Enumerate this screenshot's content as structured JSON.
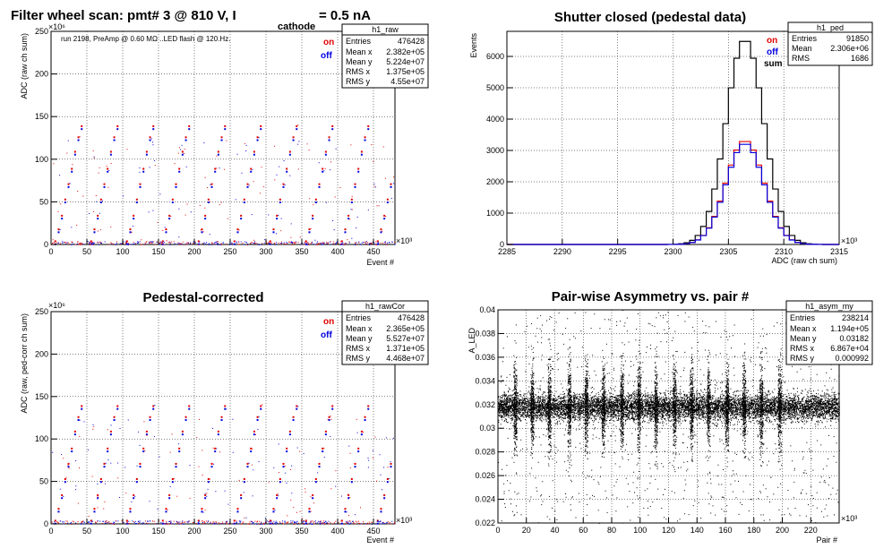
{
  "header": {
    "title_prefix": "Filter wheel scan: pmt#   3 @   810 V, I",
    "title_subscript": "cathode",
    "title_suffix": " = 0.5 nA"
  },
  "colors": {
    "on": "#e00000",
    "off": "#0000e0",
    "sum": "#000000",
    "grid": "#000000"
  },
  "legend_labels": {
    "on": "on",
    "off": "off",
    "sum": "sum"
  },
  "panels": [
    {
      "id": "raw",
      "note": "run 2198, PreAmp @ 0.60 MΩ ..LED flash @  120.Hz.",
      "ylabel": "ADC (raw ch sum)",
      "xlabel": "Event #",
      "xexp": "×10³",
      "yexp": "×10⁶",
      "stats": {
        "name": "h1_raw",
        "rows": [
          [
            "Entries",
            "476428"
          ],
          [
            "Mean x",
            "2.382e+05"
          ],
          [
            "Mean y",
            "5.224e+07"
          ],
          [
            "RMS x",
            "1.375e+05"
          ],
          [
            "RMS y",
            "4.55e+07"
          ]
        ]
      }
    },
    {
      "id": "ped",
      "title": "Shutter closed (pedestal data)",
      "ylabel": "Events",
      "xlabel": "ADC (raw ch sum)",
      "xexp": "×10³",
      "stats": {
        "name": "h1_ped",
        "rows": [
          [
            "Entries",
            "91850"
          ],
          [
            "Mean",
            "2.306e+06"
          ],
          [
            "RMS",
            "1686"
          ]
        ]
      }
    },
    {
      "id": "rawcor",
      "title": "Pedestal-corrected",
      "ylabel": "ADC (raw, ped-corr ch sum)",
      "xlabel": "Event #",
      "xexp": "×10³",
      "yexp": "×10⁶",
      "stats": {
        "name": "h1_rawCor",
        "rows": [
          [
            "Entries",
            "476428"
          ],
          [
            "Mean x",
            "2.365e+05"
          ],
          [
            "Mean y",
            "5.527e+07"
          ],
          [
            "RMS x",
            "1.371e+05"
          ],
          [
            "RMS y",
            "4.468e+07"
          ]
        ]
      }
    },
    {
      "id": "asym",
      "title": "Pair-wise Asymmetry vs. pair #",
      "ylabel": "A_LED",
      "xlabel": "Pair #",
      "xexp": "×10³",
      "stats": {
        "name": "h1_asym_my",
        "rows": [
          [
            "Entries",
            "238214"
          ],
          [
            "Mean x",
            "1.194e+05"
          ],
          [
            "Mean y",
            "0.03182"
          ],
          [
            "RMS x",
            "6.867e+04"
          ],
          [
            "RMS y",
            "0.000992"
          ]
        ]
      }
    }
  ],
  "chart_data": [
    {
      "type": "scatter",
      "panel": "raw",
      "xlim": [
        0,
        480
      ],
      "ylim": [
        0,
        250
      ],
      "xticks": [
        0,
        50,
        100,
        150,
        200,
        250,
        300,
        350,
        400,
        450
      ],
      "yticks": [
        0,
        50,
        100,
        150,
        200,
        250
      ],
      "grid": true,
      "legend_position": "top-right",
      "step_levels": [
        3,
        17,
        33,
        52,
        70,
        88,
        108,
        125,
        138
      ],
      "step_period": 50,
      "series": [
        {
          "name": "on"
        },
        {
          "name": "off"
        }
      ]
    },
    {
      "type": "bar",
      "panel": "ped",
      "xlim": [
        2285,
        2315
      ],
      "ylim": [
        0,
        6800
      ],
      "xticks": [
        2285,
        2290,
        2295,
        2300,
        2305,
        2310,
        2315
      ],
      "yticks": [
        0,
        1000,
        2000,
        3000,
        4000,
        5000,
        6000
      ],
      "grid": true,
      "legend_position": "top-right",
      "bin_width": 0.5,
      "series": [
        {
          "name": "sum",
          "peak": 6550,
          "mean": 2306.5,
          "rms": 1.7
        },
        {
          "name": "on",
          "peak": 3320,
          "mean": 2306.5,
          "rms": 1.7
        },
        {
          "name": "off",
          "peak": 3230,
          "mean": 2306.5,
          "rms": 1.7
        }
      ]
    },
    {
      "type": "scatter",
      "panel": "rawcor",
      "xlim": [
        0,
        480
      ],
      "ylim": [
        0,
        250
      ],
      "xticks": [
        0,
        50,
        100,
        150,
        200,
        250,
        300,
        350,
        400,
        450
      ],
      "yticks": [
        0,
        50,
        100,
        150,
        200,
        250
      ],
      "grid": true,
      "legend_position": "top-right",
      "step_levels": [
        3,
        17,
        33,
        52,
        70,
        88,
        108,
        125,
        138
      ],
      "step_period": 50,
      "series": [
        {
          "name": "on"
        },
        {
          "name": "off"
        }
      ]
    },
    {
      "type": "scatter",
      "panel": "asym",
      "xlim": [
        0,
        240
      ],
      "ylim": [
        0.022,
        0.04
      ],
      "xticks": [
        0,
        20,
        40,
        60,
        80,
        100,
        120,
        140,
        160,
        180,
        200,
        220
      ],
      "yticks": [
        0.022,
        0.024,
        0.026,
        0.028,
        0.03,
        0.032,
        0.034,
        0.036,
        0.038,
        0.04
      ],
      "grid": true,
      "band_center": 0.0318,
      "band_halfwidth": 0.001,
      "spike_positions": [
        12,
        24,
        36,
        50,
        62,
        74,
        87,
        99,
        111,
        124,
        136,
        148,
        161,
        173,
        185,
        198
      ],
      "series": [
        {
          "name": "asym"
        }
      ]
    }
  ]
}
